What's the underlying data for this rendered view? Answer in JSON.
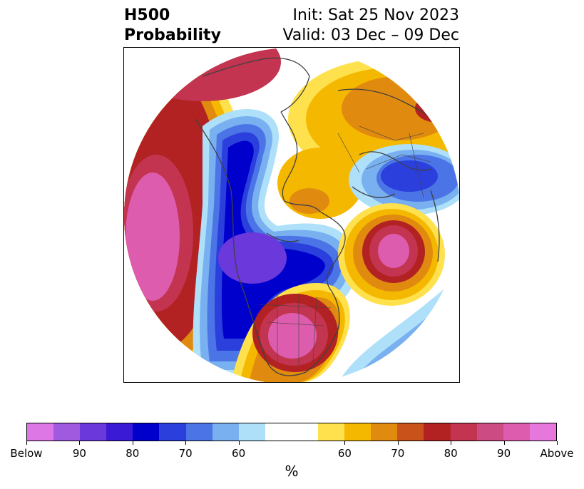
{
  "title": {
    "left_line1": "H500",
    "left_line2": "Probability",
    "right_line1": "Init: Sat 25 Nov 2023",
    "right_line2": "Valid: 03 Dec – 09 Dec"
  },
  "colorbar": {
    "colors": [
      "#dd77e6",
      "#a05ae0",
      "#6b38dc",
      "#3a1ad4",
      "#0000cc",
      "#2a3fdc",
      "#4b74e6",
      "#78b0f0",
      "#aee0fa",
      "#ffffff",
      "#ffffff",
      "#ffe14d",
      "#f5b800",
      "#e08a10",
      "#c8521a",
      "#b22222",
      "#c23450",
      "#cc4b82",
      "#dd5cae",
      "#e678dd"
    ],
    "tick_labels": [
      "Below",
      "90",
      "80",
      "70",
      "60",
      "60",
      "70",
      "80",
      "90",
      "Above"
    ],
    "label": "%"
  },
  "map": {
    "projection": "north-polar-stereographic",
    "colors": {
      "above_peak": "#dd5cae",
      "above_high": "#c23450",
      "above_mid": "#b22222",
      "above_low": "#e08a10",
      "above_light": "#f5b800",
      "above_faint": "#ffe14d",
      "below_peak": "#6b38dc",
      "below_high": "#0000cc",
      "below_mid": "#2a3fdc",
      "below_low": "#4b74e6",
      "below_light": "#78b0f0",
      "below_faint": "#aee0fa",
      "coast": "#404040"
    }
  }
}
